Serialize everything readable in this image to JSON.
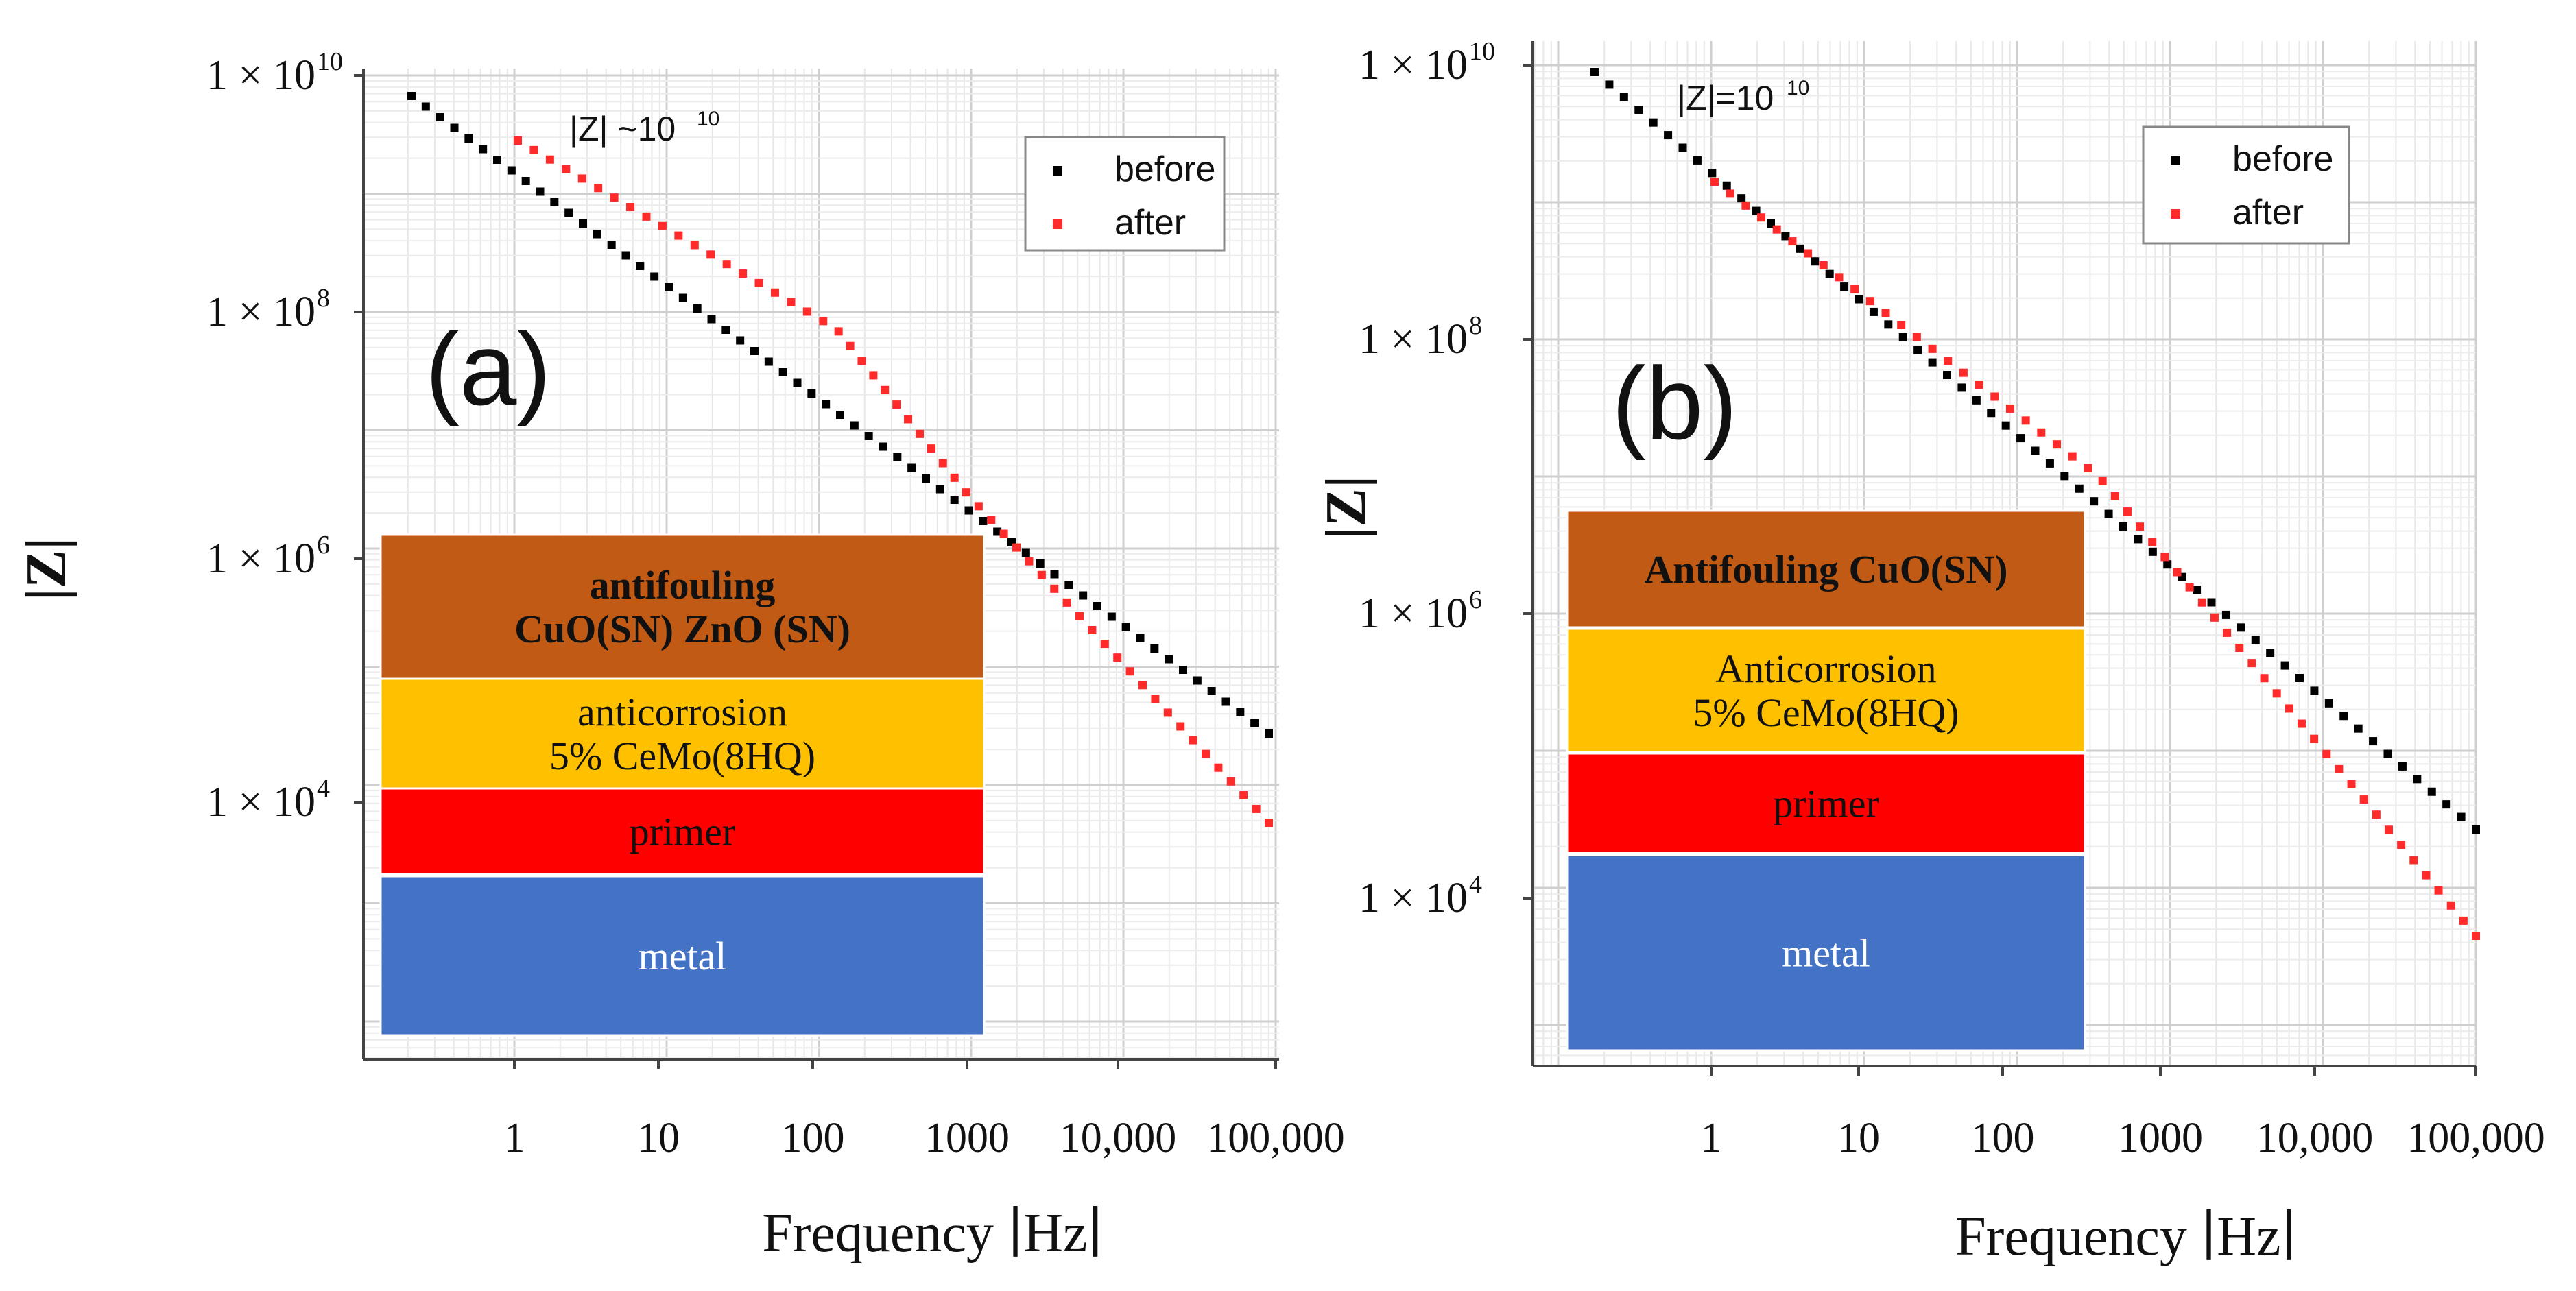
{
  "chart_data": [
    {
      "type": "scatter",
      "panel_label": "(a)",
      "xlabel": "Frequency ∣Hz∣",
      "ylabel": "|Z|",
      "xscale": "log",
      "yscale": "log",
      "xlim": [
        0.1,
        100000
      ],
      "ylim": [
        100,
        10000000000
      ],
      "xticks": [
        "1",
        "10",
        "100",
        "1000",
        "10,000",
        "100,000"
      ],
      "yticks": [
        {
          "base": "1 × 10",
          "exp": "10"
        },
        {
          "base": "1 × 10",
          "exp": "8"
        },
        {
          "base": "1 × 10",
          "exp": "6"
        },
        {
          "base": "1 × 10",
          "exp": "4"
        }
      ],
      "annotation": {
        "text": "|Z| ~10",
        "exp": "10"
      },
      "legend_position": "top-right",
      "series": [
        {
          "name": "before",
          "color": "#000000",
          "x_range": [
            0.2,
            100000
          ],
          "y_range": [
            5000000000,
            30000
          ],
          "points": 61
        },
        {
          "name": "after",
          "color": "#ff2a2a",
          "x": [
            1,
            30,
            1000,
            100000
          ],
          "y": [
            2000000000,
            200000000,
            2000000,
            7500
          ],
          "points": 56
        }
      ],
      "layers": [
        {
          "lines": [
            "antifouling",
            "CuO(SN) ZnO (SN)"
          ],
          "color": "#c05a14",
          "text_color": "#111111",
          "bold": true
        },
        {
          "lines": [
            "anticorrosion",
            "5% CeMo(8HQ)"
          ],
          "color": "#ffc000",
          "text_color": "#111111",
          "bold": false
        },
        {
          "lines": [
            "primer"
          ],
          "color": "#ff0000",
          "text_color": "#111111",
          "bold": false
        },
        {
          "lines": [
            "metal"
          ],
          "color": "#4472c4",
          "text_color": "#ffffff",
          "bold": false
        }
      ]
    },
    {
      "type": "scatter",
      "panel_label": "(b)",
      "xlabel": "Frequency ∣Hz∣",
      "ylabel": "|Z|",
      "xscale": "log",
      "yscale": "log",
      "xlim": [
        0.1,
        100000
      ],
      "ylim": [
        1000,
        10000000000
      ],
      "xticks": [
        "1",
        "10",
        "100",
        "1000",
        "10,000",
        "100,000"
      ],
      "yticks": [
        {
          "base": "1 × 10",
          "exp": "10"
        },
        {
          "base": "1 × 10",
          "exp": "8"
        },
        {
          "base": "1 × 10",
          "exp": "6"
        },
        {
          "base": "1 × 10",
          "exp": "4"
        }
      ],
      "annotation": {
        "text": "|Z|=10",
        "exp": "10"
      },
      "legend_position": "top-right",
      "series": [
        {
          "name": "before",
          "color": "#000000",
          "x_range": [
            0.2,
            100000
          ],
          "y_range": [
            7000000000,
            40000
          ],
          "points": 61
        },
        {
          "name": "after",
          "color": "#ff2a2a",
          "x": [
            1,
            300,
            100000
          ],
          "y": [
            1500000000,
            10000000,
            8500
          ],
          "points": 56
        }
      ],
      "layers": [
        {
          "lines": [
            "Antifouling CuO(SN)"
          ],
          "color": "#c05a14",
          "text_color": "#111111",
          "bold": true
        },
        {
          "lines": [
            "Anticorrosion",
            "5% CeMo(8HQ)"
          ],
          "color": "#ffc000",
          "text_color": "#111111",
          "bold": false
        },
        {
          "lines": [
            "primer"
          ],
          "color": "#ff0000",
          "text_color": "#111111",
          "bold": false
        },
        {
          "lines": [
            "metal"
          ],
          "color": "#4472c4",
          "text_color": "#ffffff",
          "bold": false
        }
      ]
    }
  ]
}
